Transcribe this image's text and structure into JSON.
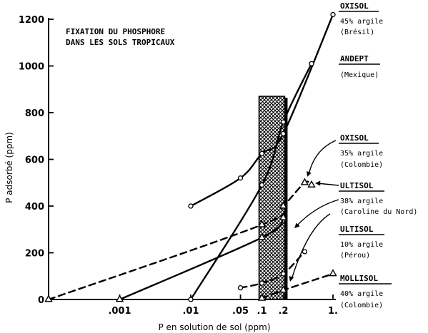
{
  "chart_data": {
    "type": "line",
    "title": "FIXATION DU PHOSPHORE",
    "subtitle": "DANS LES SOLS TROPICAUX",
    "xlabel": "P en solution de sol (ppm)",
    "ylabel": "P adsorbé (ppm)",
    "x_scale": "log",
    "xlim": [
      0.0001,
      1
    ],
    "ylim": [
      0,
      1200
    ],
    "x_ticks": [
      0.001,
      0.01,
      0.05,
      0.1,
      0.2,
      1
    ],
    "x_tick_labels": [
      ".001",
      ".01",
      ".05",
      ".1",
      ".2",
      "1."
    ],
    "y_ticks": [
      0,
      200,
      400,
      600,
      800,
      1000,
      1200
    ],
    "y_tick_labels": [
      "0",
      "200",
      "400",
      "600",
      "800",
      "1000",
      "1200"
    ],
    "shaded_band": {
      "x_from": 0.1,
      "x_to": 0.2,
      "y_from": 0,
      "y_to": 870
    },
    "grid": false,
    "series": [
      {
        "name": "OXISOL",
        "subtitle": "45% argile",
        "place": "(Brésil)",
        "line": "solid",
        "marker": "circle",
        "points": [
          [
            0.01,
            400
          ],
          [
            0.05,
            520
          ],
          [
            0.1,
            625
          ],
          [
            0.2,
            710
          ],
          [
            1,
            1220
          ]
        ]
      },
      {
        "name": "ANDEPT",
        "subtitle": "",
        "place": "(Mexique)",
        "line": "solid",
        "marker": "circle",
        "points": [
          [
            0.01,
            0
          ],
          [
            0.1,
            490
          ],
          [
            0.2,
            760
          ],
          [
            0.5,
            1010
          ]
        ]
      },
      {
        "name": "OXISOL",
        "subtitle": "35% argile",
        "place": "(Colombie)",
        "line": "solid",
        "marker": "triangle",
        "points": [
          [
            0.001,
            0
          ],
          [
            0.1,
            265
          ],
          [
            0.2,
            350
          ]
        ]
      },
      {
        "name": "ULTISOL",
        "subtitle": "38% argile",
        "place": "(Caroline du Nord)",
        "line": "dashed",
        "marker": "triangle",
        "points": [
          [
            0.0001,
            0
          ],
          [
            0.1,
            320
          ],
          [
            0.2,
            400
          ],
          [
            0.4,
            500
          ],
          [
            0.5,
            490
          ]
        ]
      },
      {
        "name": "ULTISOL",
        "subtitle": "10% argile",
        "place": "(Pérou)",
        "line": "dashed",
        "marker": "circle",
        "points": [
          [
            0.05,
            50
          ],
          [
            0.1,
            70
          ],
          [
            0.2,
            110
          ],
          [
            0.4,
            205
          ]
        ]
      },
      {
        "name": "MOLLISOL",
        "subtitle": "40% argile",
        "place": "(Colombie)",
        "line": "dashed",
        "marker": "triangle",
        "points": [
          [
            0.1,
            5
          ],
          [
            0.2,
            40
          ],
          [
            1,
            110
          ]
        ]
      }
    ]
  }
}
